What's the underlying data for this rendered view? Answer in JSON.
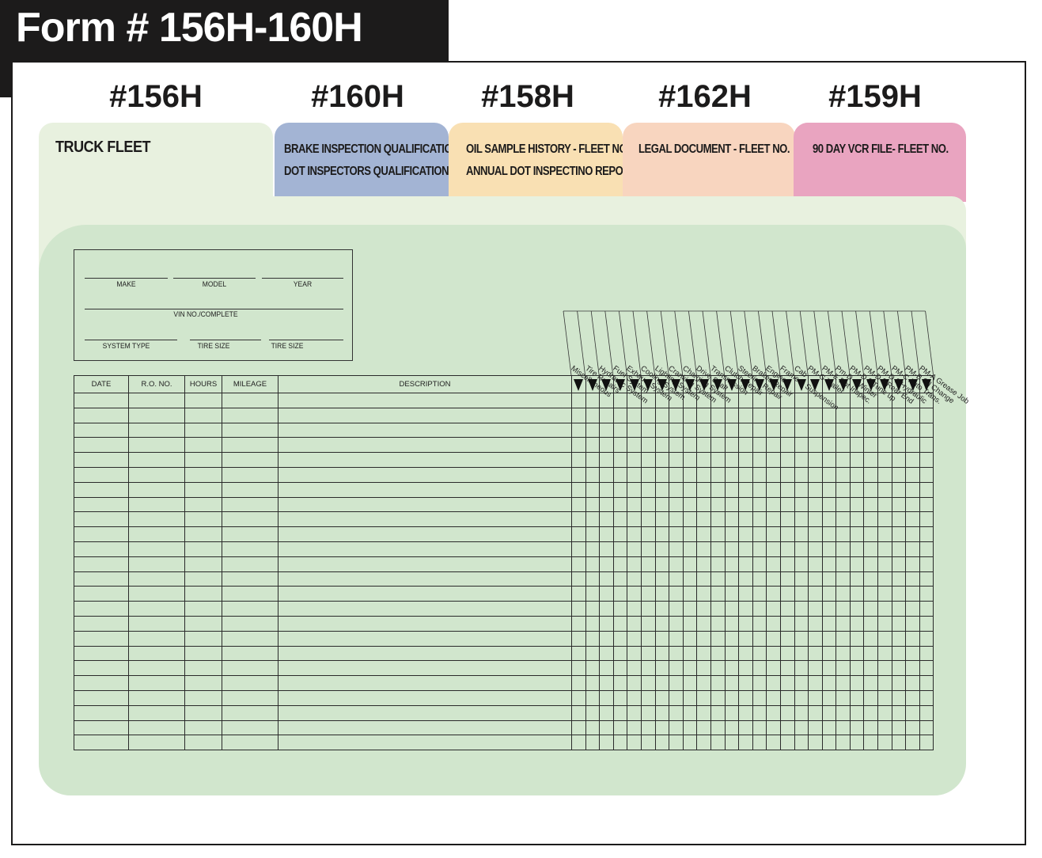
{
  "form_title": "Form # 156H-160H",
  "tabs": [
    {
      "number": "#156H",
      "lines": [
        "TRUCK FLEET"
      ]
    },
    {
      "number": "#160H",
      "lines": [
        "BRAKE INSPECTION QUALIFICATIONS",
        "DOT INSPECTORS QUALIFICATION"
      ]
    },
    {
      "number": "#158H",
      "lines": [
        "OIL SAMPLE HISTORY - FLEET NO.",
        "ANNUAL DOT INSPECTINO REPORT"
      ]
    },
    {
      "number": "#162H",
      "lines": [
        "LEGAL DOCUMENT - FLEET NO."
      ]
    },
    {
      "number": "#159H",
      "lines": [
        "90 DAY VCR FILE- FLEET NO."
      ]
    }
  ],
  "vehicle_info": {
    "make": "MAKE",
    "model": "MODEL",
    "year": "YEAR",
    "vin": "VIN NO./COMPLETE",
    "system_type": "SYSTEM TYPE",
    "tire_size_1": "TIRE SIZE",
    "tire_size_2": "TIRE SIZE"
  },
  "columns": [
    "DATE",
    "R.O. NO.",
    "HOURS",
    "MILEAGE",
    "DESCRIPTION"
  ],
  "categories": [
    "Miscellaneous",
    "Tire Repairs",
    "Hydraulic System",
    "Fuel System",
    "Exhaust System",
    "Cooling System",
    "Lighting System",
    "Cranking System",
    "Charging System",
    "Drive Shaft",
    "Transmission",
    "Clutch Repair",
    "Steering Repair",
    "Brakes Repair",
    "Engine",
    "Frame & Suspension",
    "Cab",
    "PM-G Trailer",
    "PM-E Dot Inspec.",
    "Pm-D 4 Winter",
    "PM-D 3 Tune up",
    "PM-D 2 Rear End",
    "PM-D 1 Hydraulic",
    "PM-C Auto Trans.",
    "PM-B Oil Change",
    "PM-A Grease Job"
  ],
  "blank_rows": 24,
  "colors": {
    "title_bar": "#1c1b1b",
    "tab_156H": "#e8f1df",
    "tab_160H": "#a3b4d4",
    "tab_158H": "#f9e0b3",
    "tab_162H": "#f8d5bf",
    "tab_159H": "#e9a4c0",
    "card": "#d1e6cd"
  }
}
